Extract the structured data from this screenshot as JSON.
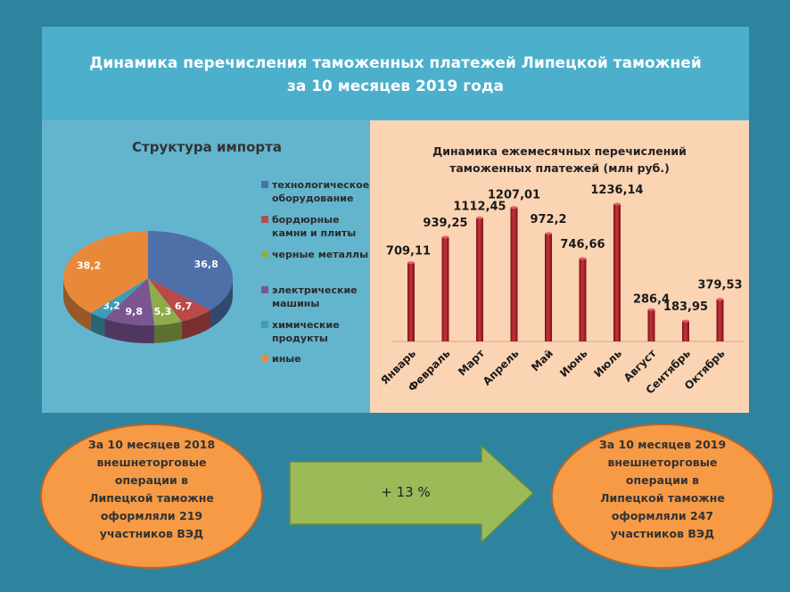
{
  "title": {
    "line1": "Динамика перечисления таможенных платежей Липецкой таможней",
    "line2": "за 10 месяцев 2019 года"
  },
  "chart_data": [
    {
      "type": "pie",
      "title": "Структура импорта",
      "categories": [
        "технологическое оборудование",
        "бордюрные камни и плиты",
        "черные металлы",
        "электрические машины",
        "химические продукты",
        "иные"
      ],
      "legend_lines": [
        [
          "технологическое",
          "оборудование"
        ],
        [
          "бордюрные",
          "камни и плиты"
        ],
        [
          "черные металлы"
        ],
        [
          "электрические",
          "машины"
        ],
        [
          "химические",
          "продукты"
        ],
        [
          "иные"
        ]
      ],
      "values": [
        36.8,
        6.7,
        5.3,
        9.8,
        3.2,
        38.2
      ],
      "labels": [
        "36,8",
        "6,7",
        "5,3",
        "9,8",
        "3,2",
        "38,2"
      ],
      "colors": [
        "#4f6fa8",
        "#b94a48",
        "#8fac4a",
        "#7a5592",
        "#3d9db6",
        "#e8893a"
      ],
      "legend": "right"
    },
    {
      "type": "bar",
      "title": "Динамика ежемесячных перечислений таможенных платежей (млн руб.)",
      "title_lines": [
        "Динамика ежемесячных перечислений",
        "таможенных платежей (млн руб.)"
      ],
      "categories": [
        "Январь",
        "Февраль",
        "Март",
        "Апрель",
        "Май",
        "Июнь",
        "Июль",
        "Август",
        "Сентябрь",
        "Октябрь"
      ],
      "values": [
        709.11,
        939.25,
        1112.45,
        1207.01,
        972.2,
        746.66,
        1236.14,
        286.4,
        183.95,
        379.53
      ],
      "labels": [
        "709,11",
        "939,25",
        "1112,45",
        "1207,01",
        "972,2",
        "746,66",
        "1236,14",
        "286,4",
        "183,95",
        "379,53"
      ],
      "color": "#a8232b",
      "grid": false
    }
  ],
  "bottom": {
    "left_lines": [
      "За 10 месяцев  2018",
      "внешнеторговые",
      "операции  в",
      "Липецкой таможне",
      "оформляли  219",
      "участников ВЭД"
    ],
    "arrow_label": "+ 13 %",
    "right_lines": [
      "За 10 месяцев  2019",
      "внешнеторговые",
      "операции  в",
      "Липецкой таможне",
      "оформляли  247",
      "участников ВЭД"
    ]
  }
}
